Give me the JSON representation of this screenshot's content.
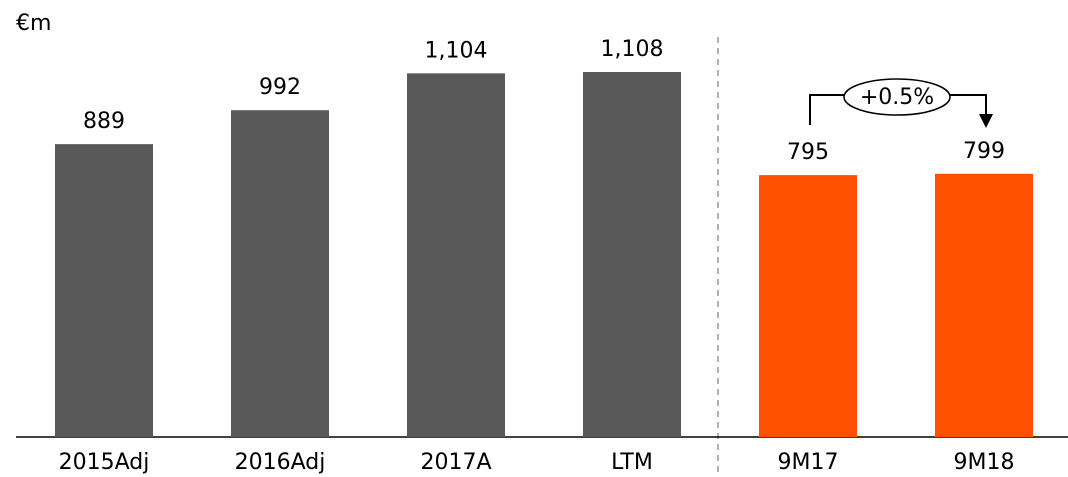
{
  "chart_data": {
    "type": "bar",
    "ylabel": "€m",
    "categories": [
      "2015Adj",
      "2016Adj",
      "2017A",
      "LTM",
      "9M17",
      "9M18"
    ],
    "values": [
      889,
      992,
      1104,
      1108,
      795,
      799
    ],
    "value_labels": [
      "889",
      "992",
      "1,104",
      "1,108",
      "795",
      "799"
    ],
    "colors": [
      "#595959",
      "#595959",
      "#595959",
      "#595959",
      "#ff5000",
      "#ff5000"
    ],
    "annotation": "+0.5%"
  }
}
